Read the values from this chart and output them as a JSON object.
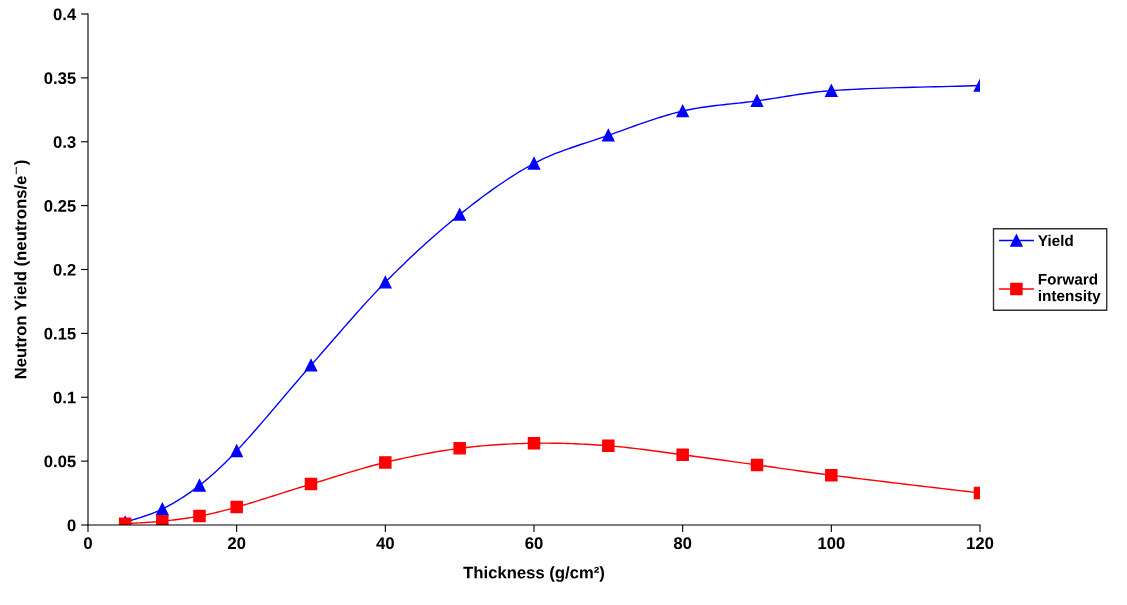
{
  "chart_data": {
    "type": "line",
    "xlabel": "Thickness (g/cm²)",
    "ylabel": "Neutron Yield (neutrons/e$^{−}$)",
    "x": [
      5,
      10,
      15,
      20,
      30,
      40,
      50,
      60,
      70,
      80,
      90,
      100,
      120
    ],
    "series": [
      {
        "name": "Yield",
        "color": "#0000ff",
        "marker": "triangle",
        "values": [
          0.002,
          0.0125,
          0.031,
          0.058,
          0.125,
          0.19,
          0.243,
          0.283,
          0.305,
          0.324,
          0.332,
          0.34,
          0.344
        ]
      },
      {
        "name": "Forward intensity",
        "color": "#ff0000",
        "marker": "square",
        "values": [
          0.001,
          0.003,
          0.007,
          0.014,
          0.032,
          0.049,
          0.06,
          0.064,
          0.062,
          0.055,
          0.047,
          0.039,
          0.025
        ]
      }
    ],
    "xlim": [
      0,
      120
    ],
    "xticks": [
      0,
      20,
      40,
      60,
      80,
      100,
      120
    ],
    "ylim": [
      0,
      0.4
    ],
    "yticks": [
      0,
      0.05,
      0.1,
      0.15,
      0.2,
      0.25,
      0.3,
      0.35,
      0.4
    ],
    "grid": false,
    "legend": "right",
    "line_style": "solid"
  }
}
